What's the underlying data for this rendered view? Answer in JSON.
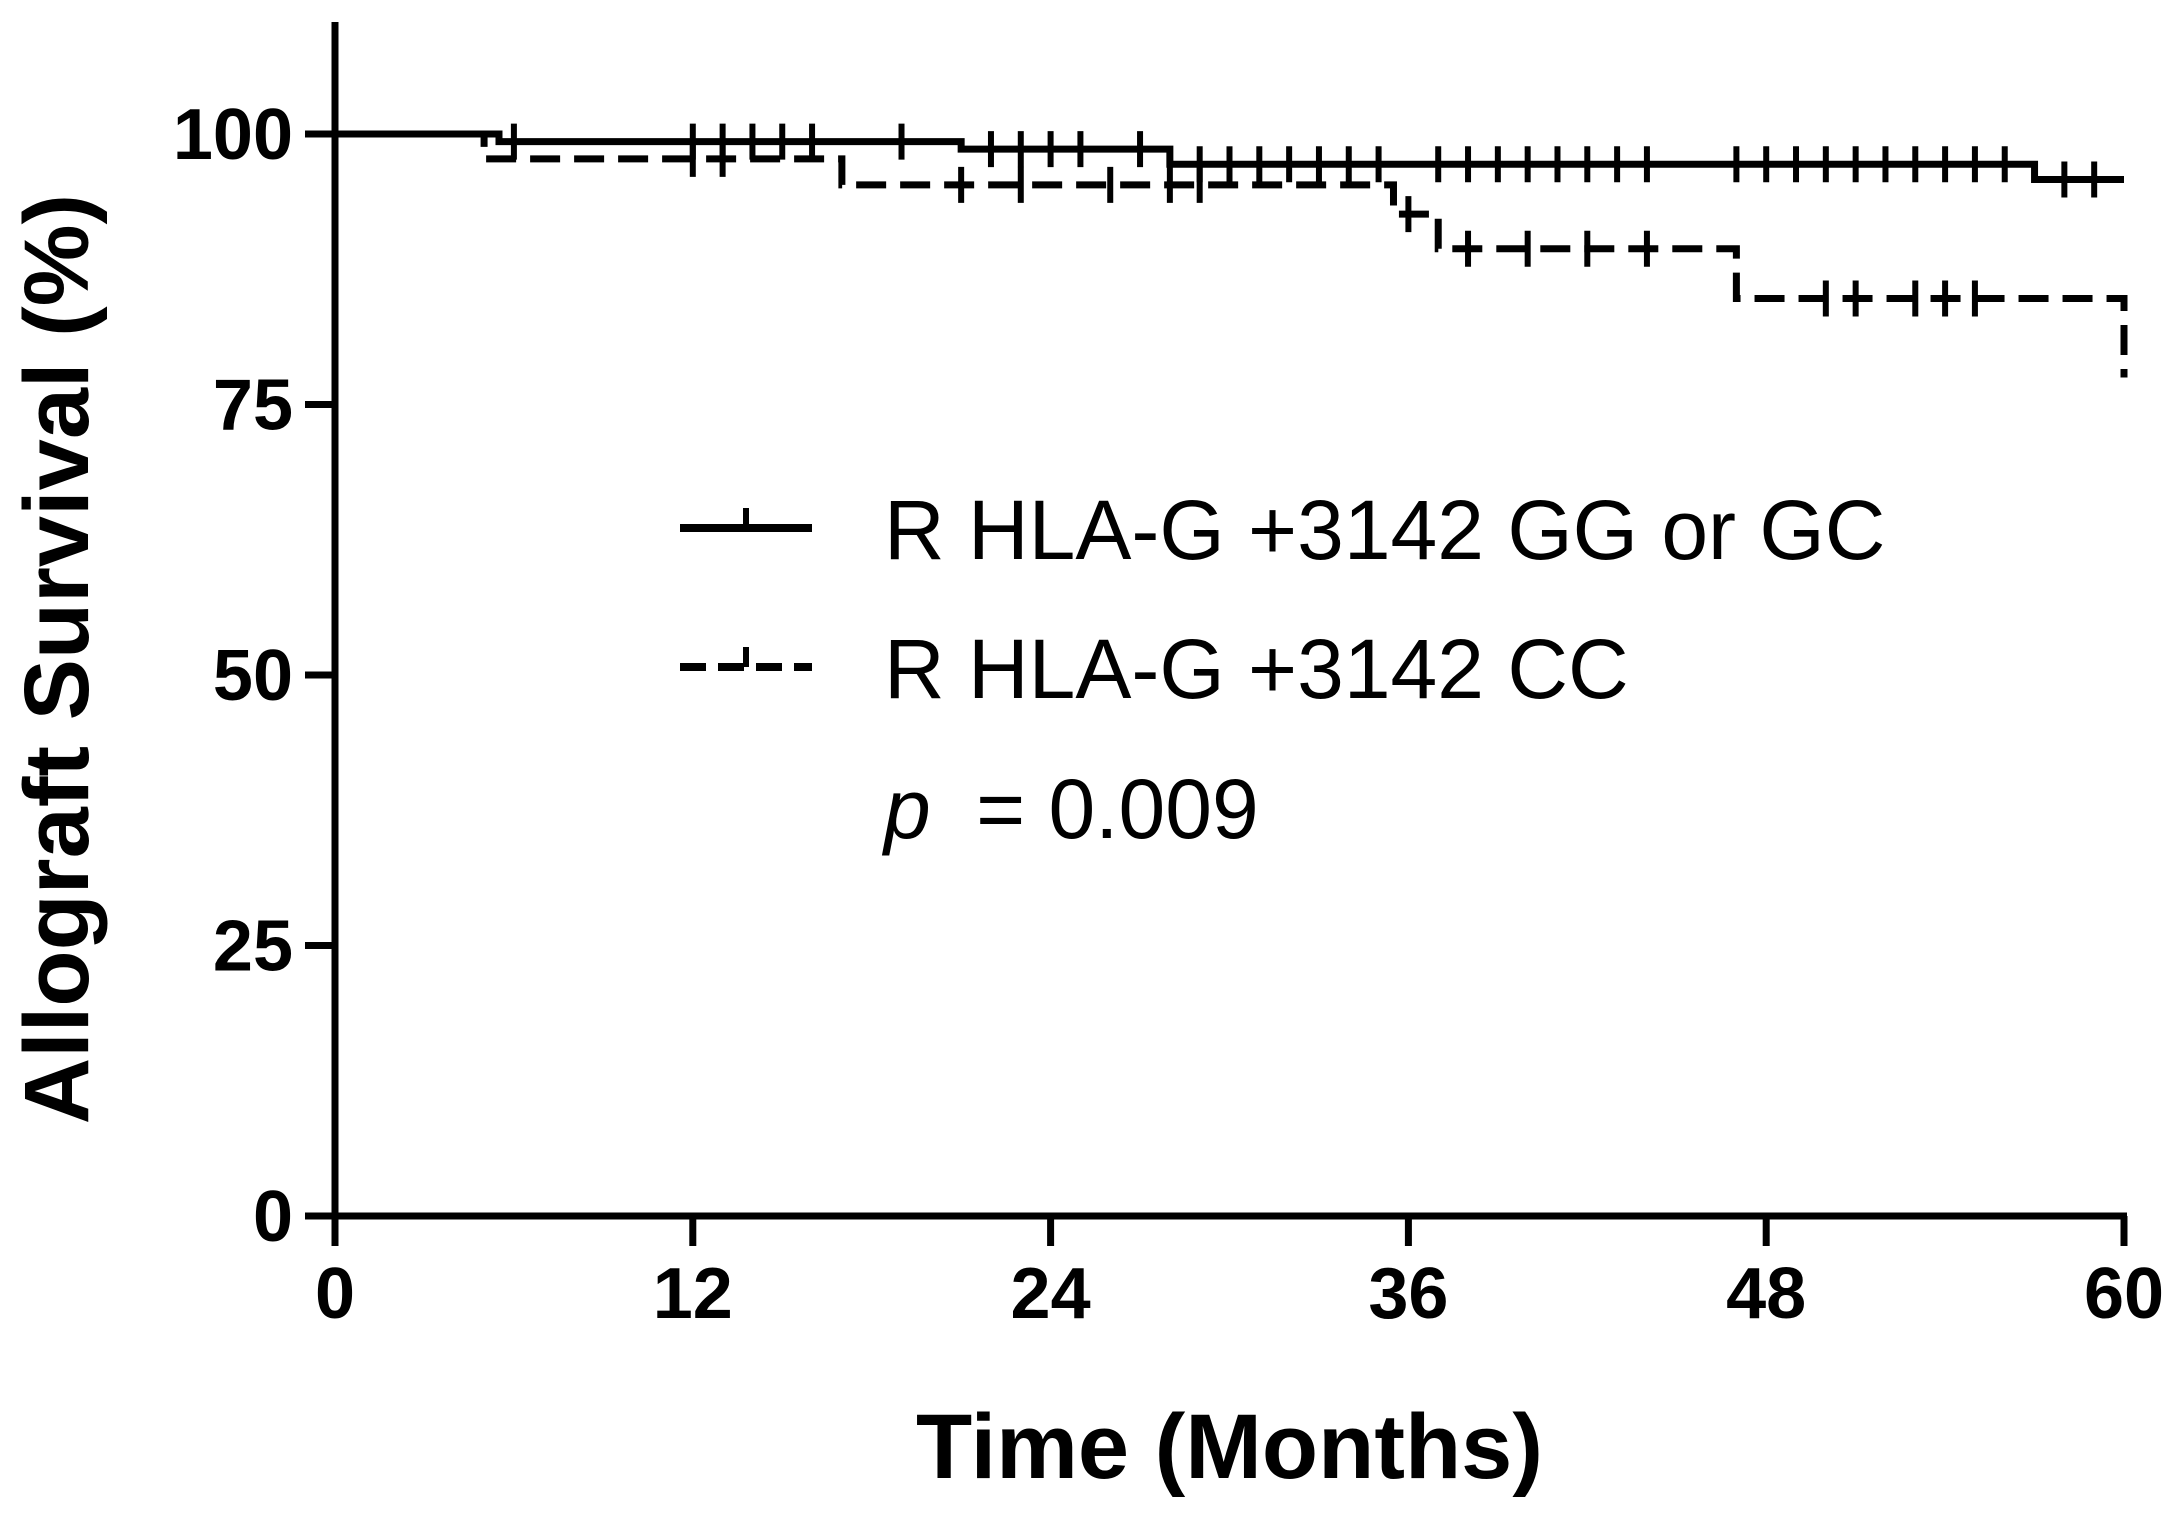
{
  "chart_data": {
    "type": "line",
    "subtype": "kaplan-meier",
    "xlabel": "Time (Months)",
    "ylabel": "Allograft Survival (%)",
    "xlim": [
      0,
      60
    ],
    "ylim": [
      0,
      100
    ],
    "x_ticks": [
      0,
      12,
      24,
      36,
      48,
      60
    ],
    "y_ticks": [
      0,
      25,
      50,
      75,
      100
    ],
    "grid": false,
    "legend_position": "center-right",
    "annotation": {
      "prefix": "p",
      "value": "= 0.009"
    },
    "series": [
      {
        "name": "R HLA-G +3142 GG or GC",
        "line_style": "solid",
        "color": "#000000",
        "steps": [
          [
            0,
            100
          ],
          [
            5.5,
            99.3
          ],
          [
            21,
            98.6
          ],
          [
            28,
            97.2
          ],
          [
            57,
            95.8
          ],
          [
            60,
            95.8
          ]
        ],
        "censored": [
          6,
          12,
          13,
          14,
          15,
          16,
          19,
          22,
          23,
          24,
          25,
          27,
          29,
          30,
          31,
          32,
          33,
          34,
          35,
          37,
          38,
          39,
          40,
          41,
          42,
          43,
          44,
          47,
          48,
          49,
          50,
          51,
          52,
          53,
          54,
          55,
          56,
          58,
          59
        ]
      },
      {
        "name": "R HLA-G +3142 CC",
        "line_style": "dashed",
        "color": "#000000",
        "steps": [
          [
            0,
            100
          ],
          [
            5,
            97.7
          ],
          [
            17,
            95.3
          ],
          [
            35.5,
            92.6
          ],
          [
            37,
            89.4
          ],
          [
            47,
            84.8
          ],
          [
            60,
            77.5
          ]
        ],
        "censored": [
          12,
          13,
          21,
          23,
          26,
          28,
          29,
          36,
          38,
          40,
          42,
          44,
          50,
          51,
          53,
          54,
          55
        ]
      }
    ]
  }
}
